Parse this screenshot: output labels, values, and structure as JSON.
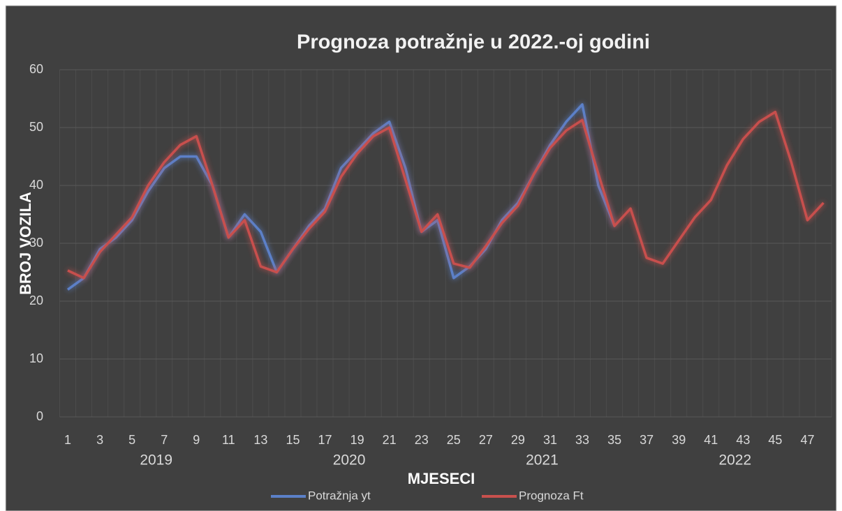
{
  "chart_data": {
    "type": "line",
    "title": "Prognoza potražnje u 2022.-oj godini",
    "y_label": "BROJ VOZILA",
    "x_label": "MJESECI",
    "categories": [
      1,
      null,
      3,
      null,
      5,
      null,
      7,
      null,
      9,
      null,
      11,
      null,
      13,
      null,
      15,
      null,
      17,
      null,
      19,
      null,
      21,
      null,
      23,
      null,
      25,
      null,
      27,
      null,
      29,
      null,
      31,
      null,
      33,
      null,
      35,
      null,
      37,
      null,
      39,
      null,
      41,
      null,
      43,
      null,
      45,
      null,
      47,
      null
    ],
    "year_groups": [
      "2019",
      "2020",
      "2021",
      "2022"
    ],
    "series": [
      {
        "name": "Potražnja  yt",
        "color": "#5b80c8",
        "values": [
          22,
          24,
          29,
          31,
          34,
          39,
          43,
          45,
          45,
          40,
          31,
          35,
          32,
          25,
          29,
          33,
          36,
          43,
          46,
          49,
          51,
          43,
          32,
          34,
          24,
          26,
          29,
          34,
          37,
          42,
          47,
          51,
          54,
          40,
          33,
          null,
          null,
          null,
          null,
          null,
          null,
          null,
          null,
          null,
          null,
          null,
          null,
          null
        ]
      },
      {
        "name": "Prognoza Ft",
        "color": "#c8504d",
        "values": [
          25.3,
          24,
          28.5,
          31.5,
          34.5,
          40,
          44,
          47,
          48.5,
          40,
          31,
          34,
          26,
          25,
          29,
          32.5,
          35.5,
          41.5,
          45.5,
          48.5,
          50,
          41,
          32,
          35,
          26.5,
          25.8,
          29.5,
          33.5,
          36.5,
          42,
          46.5,
          49.5,
          51.3,
          42,
          33,
          36,
          27.5,
          26.5,
          30.5,
          34.5,
          37.5,
          43.5,
          48,
          51,
          52.7,
          44,
          34,
          37
        ]
      }
    ],
    "ylim": [
      0,
      60
    ],
    "yticks": [
      0,
      10,
      20,
      30,
      40,
      50,
      60
    ],
    "grid": true,
    "legend": "bottom"
  }
}
